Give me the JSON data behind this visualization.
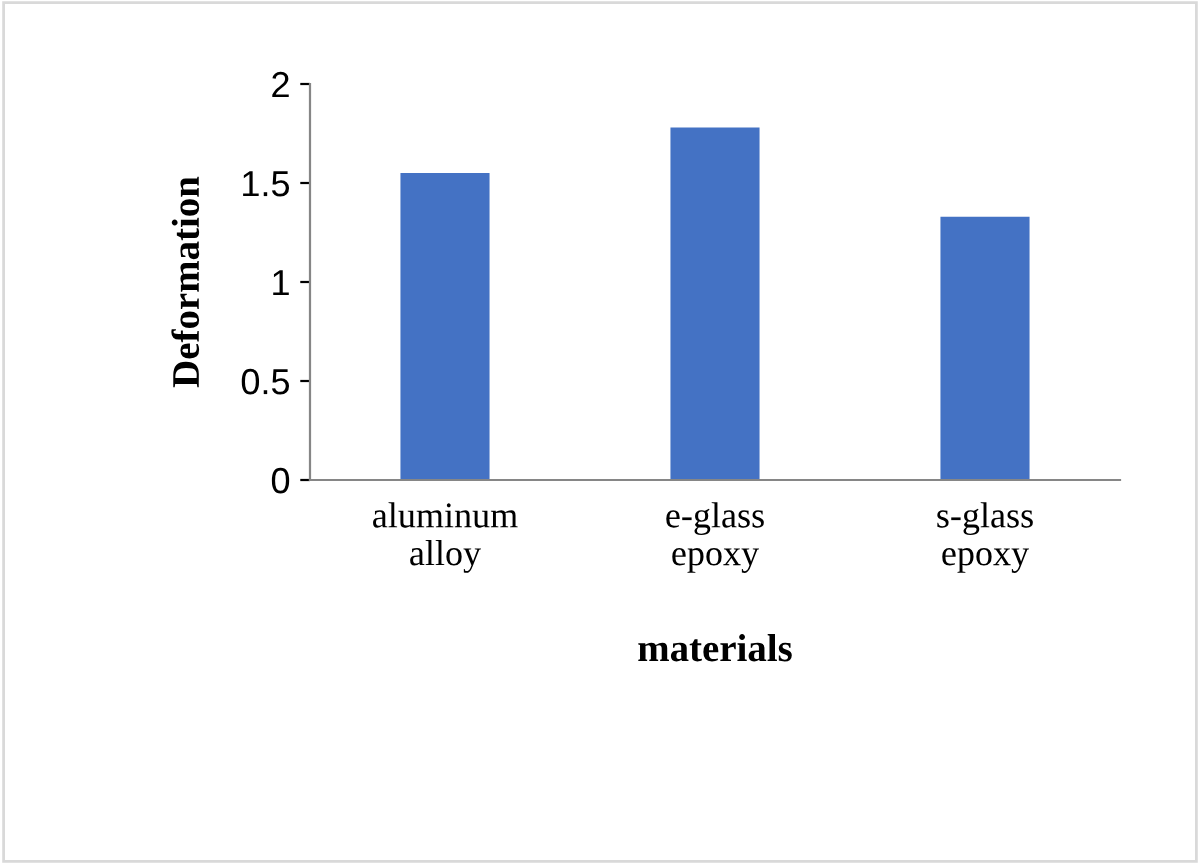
{
  "chart_data": {
    "type": "bar",
    "xlabel": "materials",
    "ylabel": "Deformation",
    "categories": [
      "aluminum\nalloy",
      "e-glass\nepoxy",
      "s-glass\nepoxy"
    ],
    "values": [
      1.55,
      1.78,
      1.33
    ],
    "color": "#4472c4",
    "ylim": [
      0,
      2
    ],
    "yticks": [
      0,
      0.5,
      1,
      1.5,
      2
    ],
    "grid": false,
    "legend": false
  }
}
